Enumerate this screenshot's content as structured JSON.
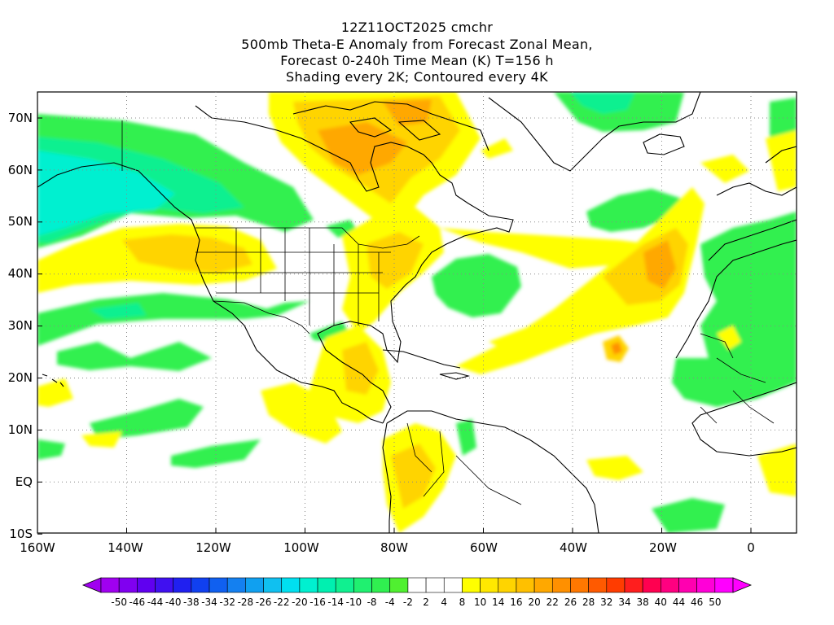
{
  "title": {
    "line1": "12Z11OCT2025 cmchr",
    "line2": "500mb Theta-E Anomaly from Forecast Zonal Mean,",
    "line3": "Forecast 0-240h Time Mean (K) T=156 h",
    "line4": "Shading every 2K; Contoured every 4K"
  },
  "lat_labels": [
    "70N",
    "60N",
    "50N",
    "40N",
    "30N",
    "20N",
    "10N",
    "EQ",
    "10S"
  ],
  "lon_labels": [
    "160W",
    "140W",
    "120W",
    "100W",
    "80W",
    "60W",
    "40W",
    "20W",
    "0"
  ],
  "colorbar": {
    "labels": [
      "-50",
      "-46",
      "-44",
      "-40",
      "-38",
      "-34",
      "-32",
      "-28",
      "-26",
      "-22",
      "-20",
      "-16",
      "-14",
      "-10",
      "-8",
      "-4",
      "-2",
      "2",
      "4",
      "8",
      "10",
      "14",
      "16",
      "20",
      "22",
      "26",
      "28",
      "32",
      "34",
      "38",
      "40",
      "44",
      "46",
      "50"
    ],
    "colors": [
      "#a000f0",
      "#8000f0",
      "#6000f0",
      "#4010f0",
      "#2020f0",
      "#1040f0",
      "#1060f0",
      "#1480f0",
      "#10a0f0",
      "#10c0f0",
      "#00e0f0",
      "#00f0d0",
      "#00f0b0",
      "#10f090",
      "#20f070",
      "#30f050",
      "#50f030",
      "#ffffff",
      "#ffffff",
      "#ffffff",
      "#ffff00",
      "#ffe800",
      "#ffd400",
      "#ffc000",
      "#ffa800",
      "#ff9000",
      "#ff7800",
      "#ff5a00",
      "#ff3c00",
      "#ff1e1e",
      "#ff0050",
      "#ff0080",
      "#ff00b0",
      "#ff00d8",
      "#ff00ff"
    ]
  }
}
